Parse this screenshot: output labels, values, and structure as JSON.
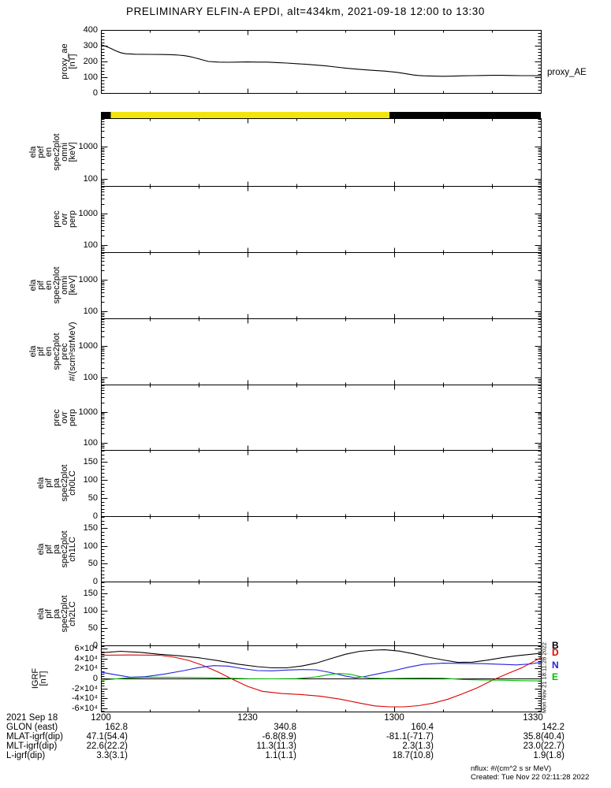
{
  "title": "PRELIMINARY ELFIN-A EPDI, alt=434km, 2021-09-18 12:00 to 13:30",
  "right_label": "proxy_AE",
  "side_timestamp": "Mon Nov 21 18:11:28 2022",
  "footer": {
    "nflux_units": "nflux: #/(cm^2 s sr MeV)",
    "created": "Created: Tue Nov 22 02:11:28 2022"
  },
  "colors": {
    "bar_yellow": "#f2e50e",
    "bar_black": "#000000",
    "line_black": "#000000",
    "line_red": "#dd0000",
    "line_blue": "#2222dd",
    "line_green": "#00bb00"
  },
  "legend": [
    {
      "label": "B",
      "color": "#000000"
    },
    {
      "label": "D",
      "color": "#dd0000"
    },
    {
      "label": "N",
      "color": "#2222dd"
    },
    {
      "label": "E",
      "color": "#00bb00"
    }
  ],
  "xaxis": {
    "range": [
      0,
      90
    ],
    "tick_minutes": [
      0,
      30,
      60,
      90
    ],
    "tick_labels": [
      "1200",
      "1230",
      "1300",
      "1330"
    ],
    "minor_minutes": [
      10,
      20,
      40,
      50,
      70,
      80
    ]
  },
  "table": {
    "date_label": "2021 Sep 18",
    "rows": [
      {
        "label": "GLON (east)",
        "values": [
          "162.8",
          "340.8",
          "160.4",
          "142.2"
        ]
      },
      {
        "label": "MLAT-igrf(dip)",
        "values": [
          "47.1(54.4)",
          "-6.8(8.9)",
          "-81.1(-71.7)",
          "35.8(40.4)"
        ]
      },
      {
        "label": "MLT-igrf(dip)",
        "values": [
          "22.6(22.2)",
          "11.3(11.3)",
          "2.3(1.3)",
          "23.0(22.7)"
        ]
      },
      {
        "label": "L-igrf(dip)",
        "values": [
          "3.3(3.1)",
          "1.1(1.1)",
          "18.7(10.8)",
          "1.9(1.8)"
        ]
      }
    ]
  },
  "chart_data": [
    {
      "id": "proxy_ae",
      "type": "line",
      "scale": "linear",
      "ylabel_lines": [
        "proxy_ae",
        "[nT]"
      ],
      "ylim": [
        0,
        400
      ],
      "yticks": [
        400,
        300,
        200,
        100,
        0
      ],
      "ytick_labels": [
        "400",
        "300",
        "200",
        "100",
        "0"
      ],
      "yminor_step": 20,
      "series": [
        {
          "name": "proxy_AE",
          "color": "#000000",
          "x": [
            0,
            1,
            2,
            3,
            4,
            5,
            7,
            10,
            13,
            15,
            16,
            17,
            18,
            19,
            20,
            21,
            22,
            24,
            26,
            28,
            30,
            32,
            34,
            36,
            38,
            40,
            42,
            44,
            46,
            48,
            50,
            52,
            54,
            56,
            58,
            60,
            61,
            62,
            63,
            64,
            65,
            66,
            68,
            70,
            72,
            74,
            76,
            78,
            80,
            82,
            84,
            86,
            88,
            90
          ],
          "y": [
            307,
            296,
            283,
            268,
            256,
            249,
            246,
            245,
            244,
            242,
            240,
            237,
            232,
            225,
            217,
            208,
            200,
            196,
            195,
            196,
            197,
            196,
            196,
            193,
            190,
            186,
            182,
            177,
            172,
            165,
            158,
            152,
            147,
            143,
            139,
            133,
            129,
            124,
            119,
            114,
            111,
            109,
            107,
            106,
            107,
            109,
            110,
            111,
            112,
            112,
            111,
            110,
            110,
            109
          ]
        }
      ]
    },
    {
      "id": "orbit_bar",
      "type": "segment_bar",
      "segments": [
        {
          "color": "#000000",
          "from": 0,
          "to": 2
        },
        {
          "color": "#f2e50e",
          "from": 2,
          "to": 59
        },
        {
          "color": "#000000",
          "from": 59,
          "to": 90
        }
      ]
    },
    {
      "id": "ela_pef_en_spec2plot_omni",
      "type": "spectrogram_empty",
      "scale": "log",
      "ylabel_lines": [
        "ela",
        "pef",
        "en",
        "spec2plot",
        "omni",
        "[keV]"
      ],
      "ylim": [
        60,
        7500
      ],
      "yticks": [
        1000,
        100
      ],
      "ytick_labels": [
        "1000",
        "100"
      ]
    },
    {
      "id": "pef_prec_ovr_perp",
      "type": "spectrogram_empty",
      "scale": "log",
      "ylabel_lines": [
        "prec",
        "ovr",
        "perp"
      ],
      "ylim": [
        60,
        7500
      ],
      "yticks": [
        1000,
        100
      ],
      "ytick_labels": [
        "1000",
        "100"
      ]
    },
    {
      "id": "ela_pif_en_spec2plot_omni",
      "type": "spectrogram_empty",
      "scale": "log",
      "ylabel_lines": [
        "ela",
        "pif",
        "en",
        "spec2plot",
        "omni",
        "[keV]"
      ],
      "ylim": [
        60,
        7500
      ],
      "yticks": [
        1000,
        100
      ],
      "ytick_labels": [
        "1000",
        "100"
      ]
    },
    {
      "id": "ela_pif_en_spec2plot_prec",
      "type": "spectrogram_empty",
      "scale": "log",
      "ylabel_lines": [
        "ela",
        "pif",
        "en",
        "spec2plot",
        "prec",
        "#/(scm²strMeV)"
      ],
      "ylim": [
        60,
        7500
      ],
      "yticks": [
        1000,
        100
      ],
      "ytick_labels": [
        "1000",
        "100"
      ]
    },
    {
      "id": "pif_prec_ovr_perp",
      "type": "spectrogram_empty",
      "scale": "log",
      "ylabel_lines": [
        "prec",
        "ovr",
        "perp"
      ],
      "ylim": [
        60,
        7500
      ],
      "yticks": [
        1000,
        100
      ],
      "ytick_labels": [
        "1000",
        "100"
      ]
    },
    {
      "id": "ela_pif_pa_spec2plot_ch0LC",
      "type": "spectrogram_empty",
      "scale": "linear",
      "ylabel_lines": [
        "ela",
        "pif",
        "pa",
        "spec2plot",
        "ch0LC"
      ],
      "ylim": [
        0,
        183
      ],
      "yticks": [
        150,
        100,
        50,
        0
      ],
      "ytick_labels": [
        "150",
        "100",
        "50",
        "0"
      ],
      "yminor_step": 10
    },
    {
      "id": "ela_pif_pa_spec2plot_ch1LC",
      "type": "spectrogram_empty",
      "scale": "linear",
      "ylabel_lines": [
        "ela",
        "pif",
        "pa",
        "spec2plot",
        "ch1LC"
      ],
      "ylim": [
        0,
        183
      ],
      "yticks": [
        150,
        100,
        50,
        0
      ],
      "ytick_labels": [
        "150",
        "100",
        "50",
        "0"
      ],
      "yminor_step": 10
    },
    {
      "id": "ela_pif_pa_spec2plot_ch2LC",
      "type": "spectrogram_empty",
      "scale": "linear",
      "ylabel_lines": [
        "ela",
        "pif",
        "pa",
        "spec2plot",
        "ch2LC"
      ],
      "ylim": [
        0,
        183
      ],
      "yticks": [
        150,
        100,
        50,
        0
      ],
      "ytick_labels": [
        "150",
        "100",
        "50",
        "0"
      ],
      "yminor_step": 10
    },
    {
      "id": "igrf",
      "type": "line",
      "scale": "linear",
      "ylabel_lines": [
        "IGRF",
        "[nT]"
      ],
      "ylim": [
        -67000,
        67000
      ],
      "yticks": [
        60000,
        40000,
        20000,
        0,
        -20000,
        -40000,
        -60000
      ],
      "ytick_labels": [
        "6×10⁴",
        "4×10⁴",
        "2×10⁴",
        "0",
        "-2×10⁴",
        "-4×10⁴",
        "-6×10⁴"
      ],
      "yminor_step": 5000,
      "zero_line": true,
      "label_right_edge": 60,
      "series": [
        {
          "name": "B",
          "color": "#000000",
          "x": [
            0,
            4,
            8,
            12,
            16,
            20,
            24,
            28,
            32,
            35,
            38,
            41,
            44,
            47,
            50,
            53,
            56,
            58,
            61,
            64,
            67,
            70,
            73,
            76,
            79,
            82,
            85,
            88,
            90
          ],
          "y": [
            52000,
            55000,
            53000,
            49000,
            46000,
            42000,
            36000,
            29000,
            24000,
            21500,
            21500,
            25000,
            31000,
            40000,
            49000,
            55000,
            57500,
            58000,
            55500,
            50000,
            43000,
            37500,
            32500,
            33000,
            37000,
            42000,
            46000,
            49000,
            51000
          ]
        },
        {
          "name": "D",
          "color": "#dd0000",
          "x": [
            0,
            6,
            12,
            15,
            18,
            21,
            24,
            27,
            30,
            33,
            37,
            41,
            45,
            49,
            53,
            56,
            59,
            62,
            65,
            68,
            71,
            74,
            77,
            80,
            83,
            86,
            90
          ],
          "y": [
            47000,
            47500,
            47000,
            43000,
            36500,
            26000,
            13000,
            -2000,
            -16000,
            -26000,
            -30500,
            -32500,
            -36000,
            -42000,
            -50000,
            -55500,
            -57500,
            -57500,
            -55000,
            -50000,
            -42000,
            -31000,
            -19000,
            -4000,
            9000,
            21000,
            42000
          ]
        },
        {
          "name": "N",
          "color": "#2222dd",
          "x": [
            0,
            3,
            6,
            9,
            13,
            17,
            20,
            23,
            26,
            29,
            32,
            35,
            38,
            41,
            44,
            47,
            50,
            52,
            54,
            57,
            60,
            63,
            66,
            70,
            74,
            78,
            82,
            85,
            88,
            90
          ],
          "y": [
            13000,
            7500,
            2500,
            3500,
            9000,
            16000,
            22000,
            26000,
            25000,
            20000,
            16000,
            15500,
            17000,
            18000,
            17500,
            12000,
            5000,
            1500,
            4000,
            10000,
            16000,
            23000,
            28500,
            31000,
            30500,
            30000,
            28500,
            27500,
            29500,
            33000
          ]
        },
        {
          "name": "E",
          "color": "#00bb00",
          "x": [
            0,
            5,
            10,
            15,
            20,
            25,
            30,
            35,
            40,
            44,
            47,
            49,
            51,
            53,
            55,
            58,
            62,
            66,
            70,
            74,
            78,
            82,
            86,
            90
          ],
          "y": [
            -3500,
            1000,
            2500,
            2200,
            1800,
            1000,
            -500,
            -800,
            -300,
            3000,
            8500,
            10000,
            8500,
            4000,
            1000,
            0,
            500,
            1000,
            500,
            -2000,
            -3000,
            -3500,
            -4500,
            -5000
          ]
        }
      ]
    }
  ]
}
